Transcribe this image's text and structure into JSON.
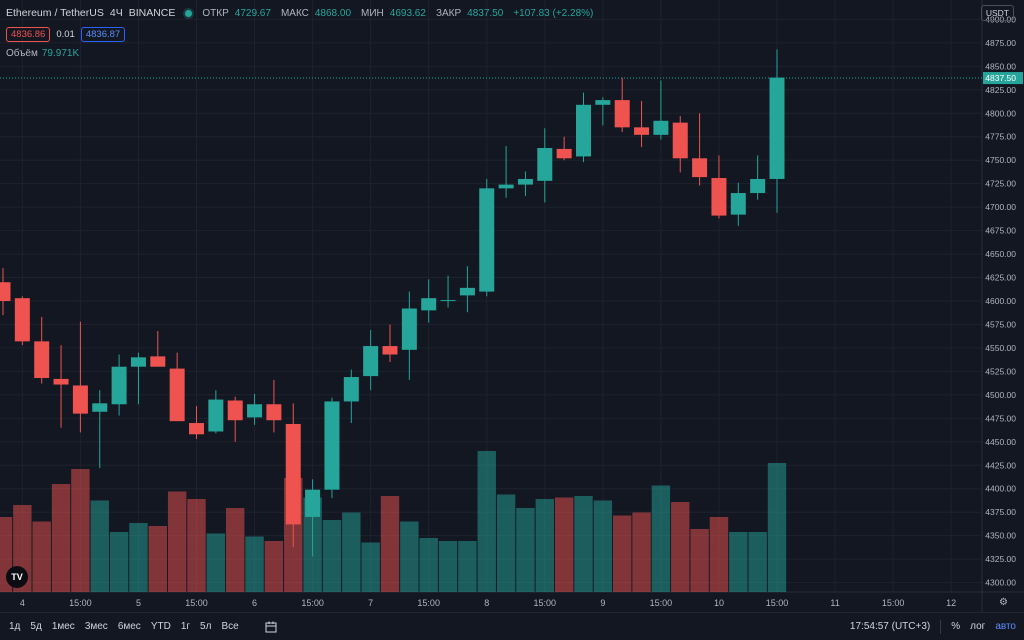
{
  "header": {
    "symbol": "Ethereum / TetherUS",
    "interval": "4Ч",
    "exchange": "BINANCE",
    "open_label": "ОТКР",
    "open_value": "4729.67",
    "high_label": "МАКС",
    "high_value": "4868.00",
    "low_label": "МИН",
    "low_value": "4693.62",
    "close_label": "ЗАКР",
    "close_value": "4837.50",
    "change_value": "+107.83 (+2.28%)",
    "sell_price": "4836.86",
    "spread": "0.01",
    "buy_price": "4836.87",
    "volume_label": "Объём",
    "volume_value": "79.971K"
  },
  "currency_badge": "USDT",
  "logo_text": "TV",
  "colors": {
    "up": "#26a69a",
    "down": "#ef5350",
    "background": "#131722",
    "grid": "#1e222d",
    "accent": "#2962ff"
  },
  "chart_data": {
    "type": "candlestick",
    "y_axis_range": [
      4290,
      4910
    ],
    "y_ticks": [
      "4300.00",
      "4325.00",
      "4350.00",
      "4375.00",
      "4400.00",
      "4425.00",
      "4450.00",
      "4475.00",
      "4500.00",
      "4525.00",
      "4550.00",
      "4575.00",
      "4600.00",
      "4625.00",
      "4650.00",
      "4675.00",
      "4700.00",
      "4725.00",
      "4750.00",
      "4775.00",
      "4800.00",
      "4825.00",
      "4850.00",
      "4875.00",
      "4900.00"
    ],
    "x_ticks": [
      {
        "label": "4",
        "index": 1
      },
      {
        "label": "15:00",
        "index": 4
      },
      {
        "label": "5",
        "index": 7
      },
      {
        "label": "15:00",
        "index": 10
      },
      {
        "label": "6",
        "index": 13
      },
      {
        "label": "15:00",
        "index": 16
      },
      {
        "label": "7",
        "index": 19
      },
      {
        "label": "15:00",
        "index": 22
      },
      {
        "label": "8",
        "index": 25
      },
      {
        "label": "15:00",
        "index": 28
      },
      {
        "label": "9",
        "index": 31
      },
      {
        "label": "15:00",
        "index": 34
      },
      {
        "label": "10",
        "index": 37
      },
      {
        "label": "15:00",
        "index": 40
      },
      {
        "label": "11",
        "index": 43
      },
      {
        "label": "15:00",
        "index": 46
      },
      {
        "label": "12",
        "index": 49
      }
    ],
    "last_price": "4837.50",
    "candles": [
      {
        "o": 4620,
        "h": 4635,
        "l": 4585,
        "c": 4600,
        "v": 0.5
      },
      {
        "o": 4603,
        "h": 4605,
        "l": 4553,
        "c": 4557,
        "v": 0.58
      },
      {
        "o": 4557,
        "h": 4583,
        "l": 4512,
        "c": 4518,
        "v": 0.47
      },
      {
        "o": 4517,
        "h": 4553,
        "l": 4465,
        "c": 4511,
        "v": 0.72
      },
      {
        "o": 4510,
        "h": 4578,
        "l": 4460,
        "c": 4480,
        "v": 0.82
      },
      {
        "o": 4482,
        "h": 4505,
        "l": 4422,
        "c": 4491,
        "v": 0.61
      },
      {
        "o": 4490,
        "h": 4543,
        "l": 4478,
        "c": 4530,
        "v": 0.4
      },
      {
        "o": 4530,
        "h": 4545,
        "l": 4490,
        "c": 4540,
        "v": 0.46
      },
      {
        "o": 4541,
        "h": 4568,
        "l": 4530,
        "c": 4530,
        "v": 0.44
      },
      {
        "o": 4528,
        "h": 4545,
        "l": 4472,
        "c": 4472,
        "v": 0.67
      },
      {
        "o": 4470,
        "h": 4488,
        "l": 4453,
        "c": 4458,
        "v": 0.62
      },
      {
        "o": 4461,
        "h": 4505,
        "l": 4459,
        "c": 4495,
        "v": 0.39
      },
      {
        "o": 4494,
        "h": 4498,
        "l": 4450,
        "c": 4473,
        "v": 0.56
      },
      {
        "o": 4476,
        "h": 4501,
        "l": 4468,
        "c": 4490,
        "v": 0.37
      },
      {
        "o": 4490,
        "h": 4516,
        "l": 4460,
        "c": 4473,
        "v": 0.34
      },
      {
        "o": 4469,
        "h": 4491,
        "l": 4338,
        "c": 4362,
        "v": 0.76
      },
      {
        "o": 4370,
        "h": 4410,
        "l": 4328,
        "c": 4399,
        "v": 0.63
      },
      {
        "o": 4399,
        "h": 4497,
        "l": 4390,
        "c": 4493,
        "v": 0.48
      },
      {
        "o": 4493,
        "h": 4527,
        "l": 4470,
        "c": 4519,
        "v": 0.53
      },
      {
        "o": 4520,
        "h": 4569,
        "l": 4505,
        "c": 4552,
        "v": 0.33
      },
      {
        "o": 4552,
        "h": 4575,
        "l": 4535,
        "c": 4543,
        "v": 0.64
      },
      {
        "o": 4548,
        "h": 4610,
        "l": 4516,
        "c": 4592,
        "v": 0.47
      },
      {
        "o": 4590,
        "h": 4623,
        "l": 4577,
        "c": 4603,
        "v": 0.36
      },
      {
        "o": 4600,
        "h": 4627,
        "l": 4593,
        "c": 4601,
        "v": 0.34
      },
      {
        "o": 4606,
        "h": 4637,
        "l": 4588,
        "c": 4614,
        "v": 0.34
      },
      {
        "o": 4610,
        "h": 4730,
        "l": 4605,
        "c": 4720,
        "v": 0.94
      },
      {
        "o": 4720,
        "h": 4765,
        "l": 4710,
        "c": 4724,
        "v": 0.65
      },
      {
        "o": 4724,
        "h": 4738,
        "l": 4712,
        "c": 4730,
        "v": 0.56
      },
      {
        "o": 4728,
        "h": 4784,
        "l": 4705,
        "c": 4763,
        "v": 0.62
      },
      {
        "o": 4762,
        "h": 4775,
        "l": 4750,
        "c": 4752,
        "v": 0.63
      },
      {
        "o": 4754,
        "h": 4822,
        "l": 4748,
        "c": 4809,
        "v": 0.64
      },
      {
        "o": 4809,
        "h": 4817,
        "l": 4787,
        "c": 4814,
        "v": 0.61
      },
      {
        "o": 4814,
        "h": 4838,
        "l": 4780,
        "c": 4785,
        "v": 0.51
      },
      {
        "o": 4785,
        "h": 4813,
        "l": 4764,
        "c": 4777,
        "v": 0.53
      },
      {
        "o": 4777,
        "h": 4835,
        "l": 4772,
        "c": 4792,
        "v": 0.71
      },
      {
        "o": 4790,
        "h": 4797,
        "l": 4737,
        "c": 4752,
        "v": 0.6
      },
      {
        "o": 4752,
        "h": 4800,
        "l": 4723,
        "c": 4732,
        "v": 0.42
      },
      {
        "o": 4731,
        "h": 4755,
        "l": 4688,
        "c": 4691,
        "v": 0.5
      },
      {
        "o": 4692,
        "h": 4726,
        "l": 4680,
        "c": 4715,
        "v": 0.4
      },
      {
        "o": 4715,
        "h": 4755,
        "l": 4708,
        "c": 4730,
        "v": 0.4
      },
      {
        "o": 4730,
        "h": 4868,
        "l": 4694,
        "c": 4838,
        "v": 0.86
      }
    ]
  },
  "price_axis": {
    "last_price_label": "4837.50"
  },
  "toolbar": {
    "timeframes": [
      "1д",
      "5д",
      "1мес",
      "3мес",
      "6мес",
      "YTD",
      "1г",
      "5л",
      "Все"
    ],
    "clock": "17:54:57 (UTC+3)",
    "percent": "%",
    "log": "лог",
    "auto": "авто"
  }
}
